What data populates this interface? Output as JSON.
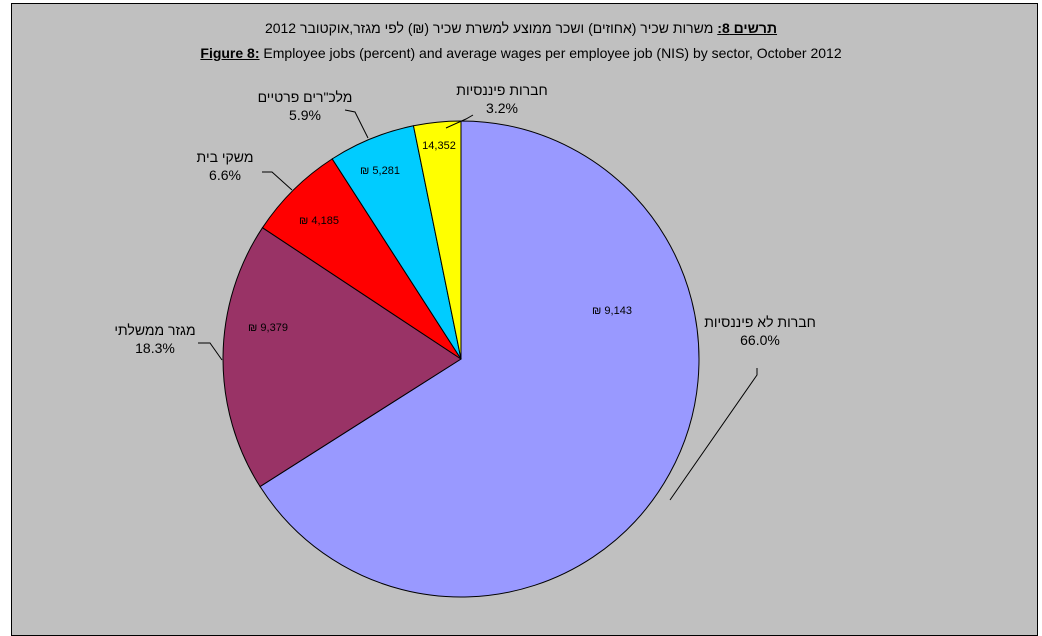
{
  "title": {
    "hebrew_prefix": "תרשים 8:",
    "hebrew_text": " משרות שכיר (אחוזים) ושכר ממוצע למשרת שכיר (₪) לפי מגזר,אוקטובר 2012",
    "english_prefix": "Figure 8:",
    "english_text": " Employee jobs (percent) and average wages per employee job (NIS)  by sector,  October 2012"
  },
  "chart_data": {
    "type": "pie",
    "start_angle_deg": 0,
    "direction": "clockwise",
    "slices": [
      {
        "name": "חברות לא פיננסיות",
        "percent_label": "66.0%",
        "value": 66.0,
        "wage_label": "₪ 9,143",
        "color": "#9999ff"
      },
      {
        "name": "מגזר ממשלתי",
        "percent_label": "18.3%",
        "value": 18.3,
        "wage_label": "₪ 9,379",
        "color": "#993366"
      },
      {
        "name": "משקי בית",
        "percent_label": "6.6%",
        "value": 6.6,
        "wage_label": "₪ 4,185",
        "color": "#ff0000"
      },
      {
        "name": "מלכ\"רים פרטיים",
        "percent_label": "5.9%",
        "value": 5.9,
        "wage_label": "₪ 5,281",
        "color": "#00ccff"
      },
      {
        "name": "חברות פיננסיות",
        "percent_label": "3.2%",
        "value": 3.2,
        "wage_label": "14,352",
        "color": "#ffff00"
      }
    ]
  }
}
